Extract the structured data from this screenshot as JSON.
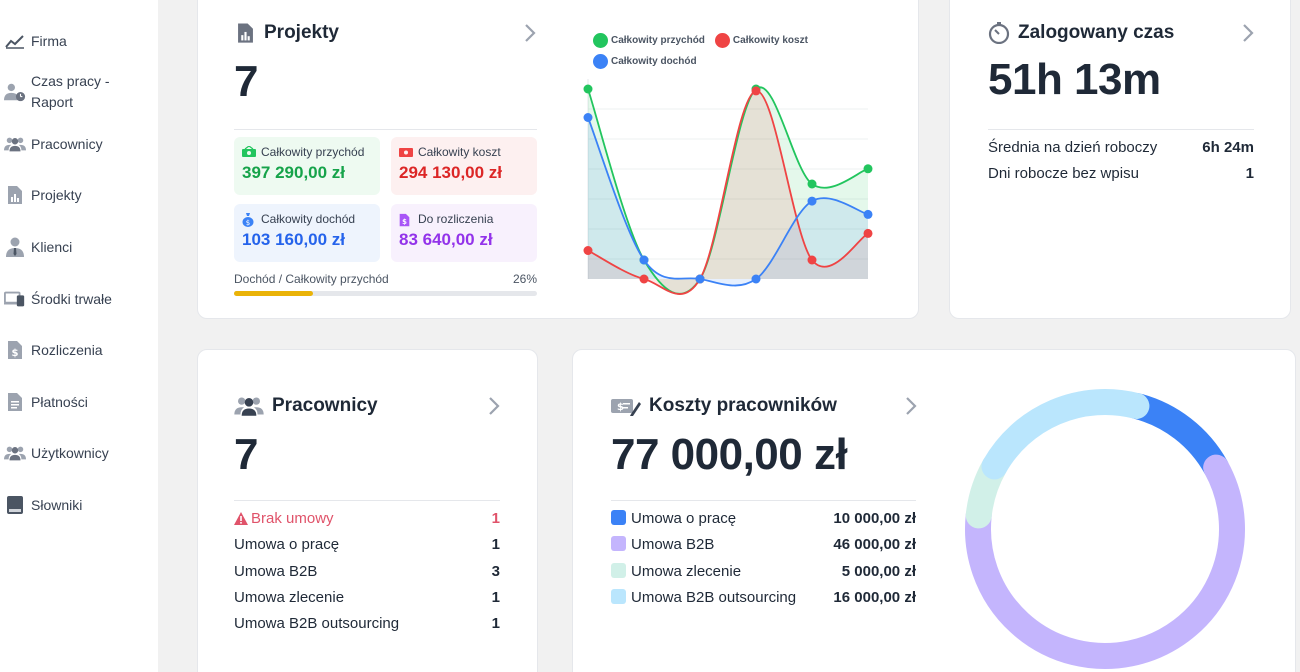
{
  "sidebar": {
    "items": [
      {
        "label": "Firma"
      },
      {
        "label": "Czas pracy -"
      },
      {
        "label": "Raport"
      },
      {
        "label": "Pracownicy"
      },
      {
        "label": "Projekty"
      },
      {
        "label": "Klienci"
      },
      {
        "label": "Środki trwałe"
      },
      {
        "label": "Rozliczenia"
      },
      {
        "label": "Płatności"
      },
      {
        "label": "Użytkownicy"
      },
      {
        "label": "Słowniki"
      }
    ]
  },
  "projects": {
    "title": "Projekty",
    "count": "7",
    "stats": {
      "revenue_label": "Całkowity przychód",
      "revenue_value": "397 290,00 zł",
      "cost_label": "Całkowity koszt",
      "cost_value": "294 130,00 zł",
      "income_label": "Całkowity dochód",
      "income_value": "103 160,00 zł",
      "settle_label": "Do rozliczenia",
      "settle_value": "83 640,00 zł"
    },
    "ratio_label": "Dochód / Całkowity przychód",
    "ratio_value": "26%",
    "ratio": 0.26,
    "colors": {
      "revenue": "#22c55e",
      "cost": "#ef4444",
      "income": "#3b82f6",
      "settle": "#a855f7",
      "ratio_bar": "#eab308"
    }
  },
  "chart_data": {
    "type": "area",
    "x": [
      1,
      2,
      3,
      4,
      5,
      6
    ],
    "series": [
      {
        "name": "Całkowity przychód",
        "color": "#22c55e",
        "values": [
          100,
          10,
          0,
          100,
          50,
          58
        ]
      },
      {
        "name": "Całkowity koszt",
        "color": "#ef4444",
        "values": [
          15,
          0,
          0,
          99,
          10,
          24
        ]
      },
      {
        "name": "Całkowity dochód",
        "color": "#3b82f6",
        "values": [
          85,
          10,
          0,
          0,
          41,
          34
        ]
      }
    ],
    "ylim": [
      0,
      100
    ],
    "grid": true,
    "legend": "top"
  },
  "time": {
    "title": "Zalogowany czas",
    "value": "51h 13m",
    "avg_label": "Średnia na dzień roboczy",
    "avg_value": "6h 24m",
    "days_label": "Dni robocze bez wpisu",
    "days_value": "1"
  },
  "employees": {
    "title": "Pracownicy",
    "count": "7",
    "rows": [
      {
        "label": "Brak umowy",
        "value": "1"
      },
      {
        "label": "Umowa o pracę",
        "value": "1"
      },
      {
        "label": "Umowa B2B",
        "value": "3"
      },
      {
        "label": "Umowa zlecenie",
        "value": "1"
      },
      {
        "label": "Umowa B2B outsourcing",
        "value": "1"
      }
    ],
    "warning_color": "#e0536a"
  },
  "costs": {
    "title": "Koszty pracowników",
    "value": "77 000,00 zł",
    "rows": [
      {
        "label": "Umowa o pracę",
        "value": "10 000,00 zł",
        "color": "#3b82f6",
        "amount": 10000
      },
      {
        "label": "Umowa B2B",
        "value": "46 000,00 zł",
        "color": "#c4b5fd",
        "amount": 46000
      },
      {
        "label": "Umowa zlecenie",
        "value": "5 000,00 zł",
        "color": "#d1f0e8",
        "amount": 5000
      },
      {
        "label": "Umowa B2B outsourcing",
        "value": "16 000,00 zł",
        "color": "#bae6fd",
        "amount": 16000
      }
    ]
  }
}
